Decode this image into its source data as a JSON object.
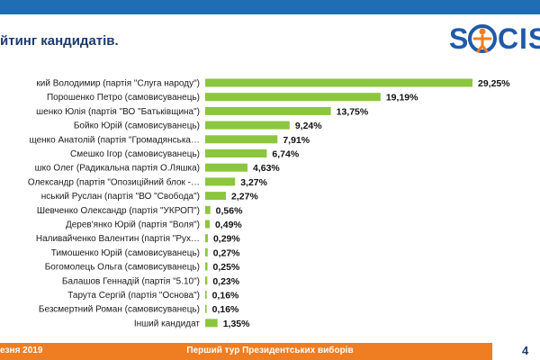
{
  "slide": {
    "title": "йтинг кандидатів.",
    "logo_text": "SOCIS",
    "footer_date": "езня 2019",
    "footer_caption": "Перший тур Президентських виборів",
    "page_number": "4"
  },
  "colors": {
    "bar": "#8cc63f",
    "top_bar": "#1f6db3",
    "footer": "#ef7d22",
    "brand": "#1e5aa8"
  },
  "chart_data": {
    "type": "bar",
    "orientation": "horizontal",
    "title": "",
    "xlabel": "",
    "ylabel": "",
    "xlim": [
      0,
      30
    ],
    "grid": false,
    "legend": "none",
    "categories": [
      "кий Володимир (партія \"Слуга народу\")",
      "Порошенко Петро (самовисуванець)",
      "шенко Юлія (партія \"ВО \"Батьківщина\")",
      "Бойко Юрій (самовисуванець)",
      "щенко Анатолій (партія \"Громадянська…",
      "Смешко Ігор (самовисуванець)",
      "шко Олег (Радикальна партія О.Ляшка)",
      "Олександр (партія \"Опозиційний блок -…",
      "нський Руслан (партія \"ВО \"Свобода\")",
      "Шевченко Олександр (партія \"УКРОП\")",
      "Дерев'янко Юрій (партія \"Воля\")",
      "Наливайченко Валентин (партія \"Рух…",
      "Тимошенко Юрій (самовисуванець)",
      "Богомолець Ольга (самовисуванець)",
      "Балашов Геннадій (партія \"5.10\")",
      "Тарута Сергій (партія \"Основа\")",
      "Безсмертний Роман (самовисуванець)",
      "Інший кандидат"
    ],
    "values": [
      29.25,
      19.19,
      13.75,
      9.24,
      7.91,
      6.74,
      4.63,
      3.27,
      2.27,
      0.56,
      0.49,
      0.29,
      0.27,
      0.25,
      0.23,
      0.16,
      0.16,
      1.35
    ],
    "value_labels": [
      "29,25%",
      "19,19%",
      "13,75%",
      "9,24%",
      "7,91%",
      "6,74%",
      "4,63%",
      "3,27%",
      "2,27%",
      "0,56%",
      "0,49%",
      "0,29%",
      "0,27%",
      "0,25%",
      "0,23%",
      "0,16%",
      "0,16%",
      "1,35%"
    ]
  }
}
